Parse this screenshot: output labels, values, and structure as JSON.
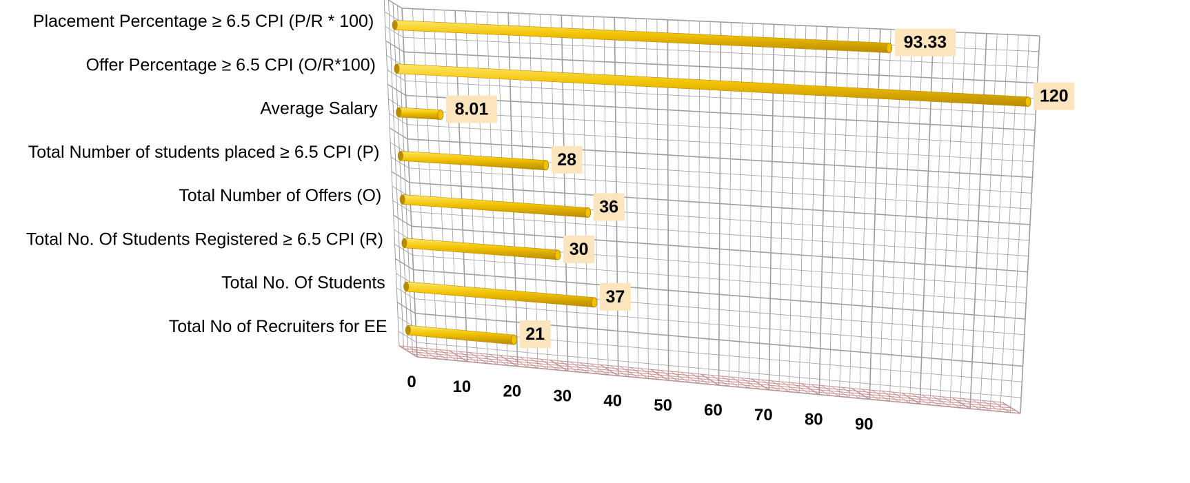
{
  "chart_data": {
    "type": "bar",
    "orientation": "horizontal",
    "style": "3d-cylinder",
    "categories": [
      "Placement Percentage  ≥ 6.5 CPI (P/R * 100)",
      "Offer Percentage  ≥ 6.5 CPI  (O/R*100)",
      "Average Salary",
      "Total Number of students placed   ≥ 6.5 CPI (P)",
      "Total Number of Offers   (O)",
      "Total No. Of Students Registered   ≥ 6.5 CPI (R)",
      "Total No. Of Students",
      "Total No of Recruiters for EE"
    ],
    "values": [
      93.33,
      120,
      8.01,
      28,
      36,
      30,
      37,
      21
    ],
    "data_labels": [
      "93.33",
      "120",
      "8.01",
      "28",
      "36",
      "30",
      "37",
      "21"
    ],
    "x_ticks": [
      "0",
      "10",
      "20",
      "30",
      "40",
      "50",
      "60",
      "70",
      "80",
      "90"
    ],
    "xlim": [
      0,
      120
    ],
    "grid": true,
    "legend": "none",
    "colors": {
      "bar": "#F2C200",
      "bar_light": "#FFE76A",
      "bar_dark": "#B98A00",
      "label_bg": "#FCE4BC",
      "grid": "#9E9E9E",
      "floor_grid": "#C98F8F"
    }
  }
}
